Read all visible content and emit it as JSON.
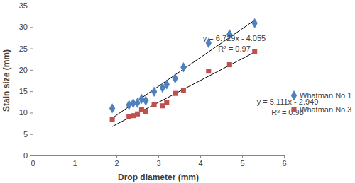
{
  "chart_data": {
    "type": "scatter",
    "x_label": "Drop diameter (mm)",
    "y_label": "Stain size (mm)",
    "xlim": [
      0,
      6
    ],
    "xticks": [
      0,
      1,
      2,
      3,
      4,
      5,
      6
    ],
    "ylim": [
      0,
      35
    ],
    "yticks": [
      0,
      5,
      10,
      15,
      20,
      25,
      30,
      35
    ],
    "grid": false,
    "legend": "right",
    "series": [
      {
        "name": "Whatman No.1",
        "color": "#4f81bd",
        "marker": "diamond",
        "x": [
          1.9,
          2.3,
          2.4,
          2.5,
          2.6,
          2.7,
          2.9,
          3.1,
          3.2,
          3.4,
          3.6,
          4.2,
          4.7,
          5.3
        ],
        "values": [
          11,
          11.8,
          12.2,
          12.3,
          13.2,
          12.8,
          14.9,
          15.8,
          16.6,
          18,
          20.6,
          26.3,
          28.3,
          30.9
        ],
        "trendline": {
          "slope": 6.729,
          "intercept": -4.055,
          "equation": "y = 6.729x - 4.055",
          "r2": "R² = 0.97"
        }
      },
      {
        "name": "Whatman No.3",
        "color": "#c0504d",
        "marker": "square",
        "x": [
          1.9,
          2.3,
          2.4,
          2.5,
          2.6,
          2.7,
          2.9,
          3.1,
          3.2,
          3.4,
          3.6,
          4.2,
          4.7,
          5.3
        ],
        "values": [
          8.4,
          9,
          9.3,
          9.7,
          10.8,
          10.3,
          11.9,
          11.6,
          12.4,
          14.5,
          15.2,
          19.7,
          21.2,
          24.3
        ],
        "trendline": {
          "slope": 5.111,
          "intercept": -2.949,
          "equation": "y = 5.111x - 2.949",
          "r2": "R² = 0.98"
        }
      }
    ]
  }
}
